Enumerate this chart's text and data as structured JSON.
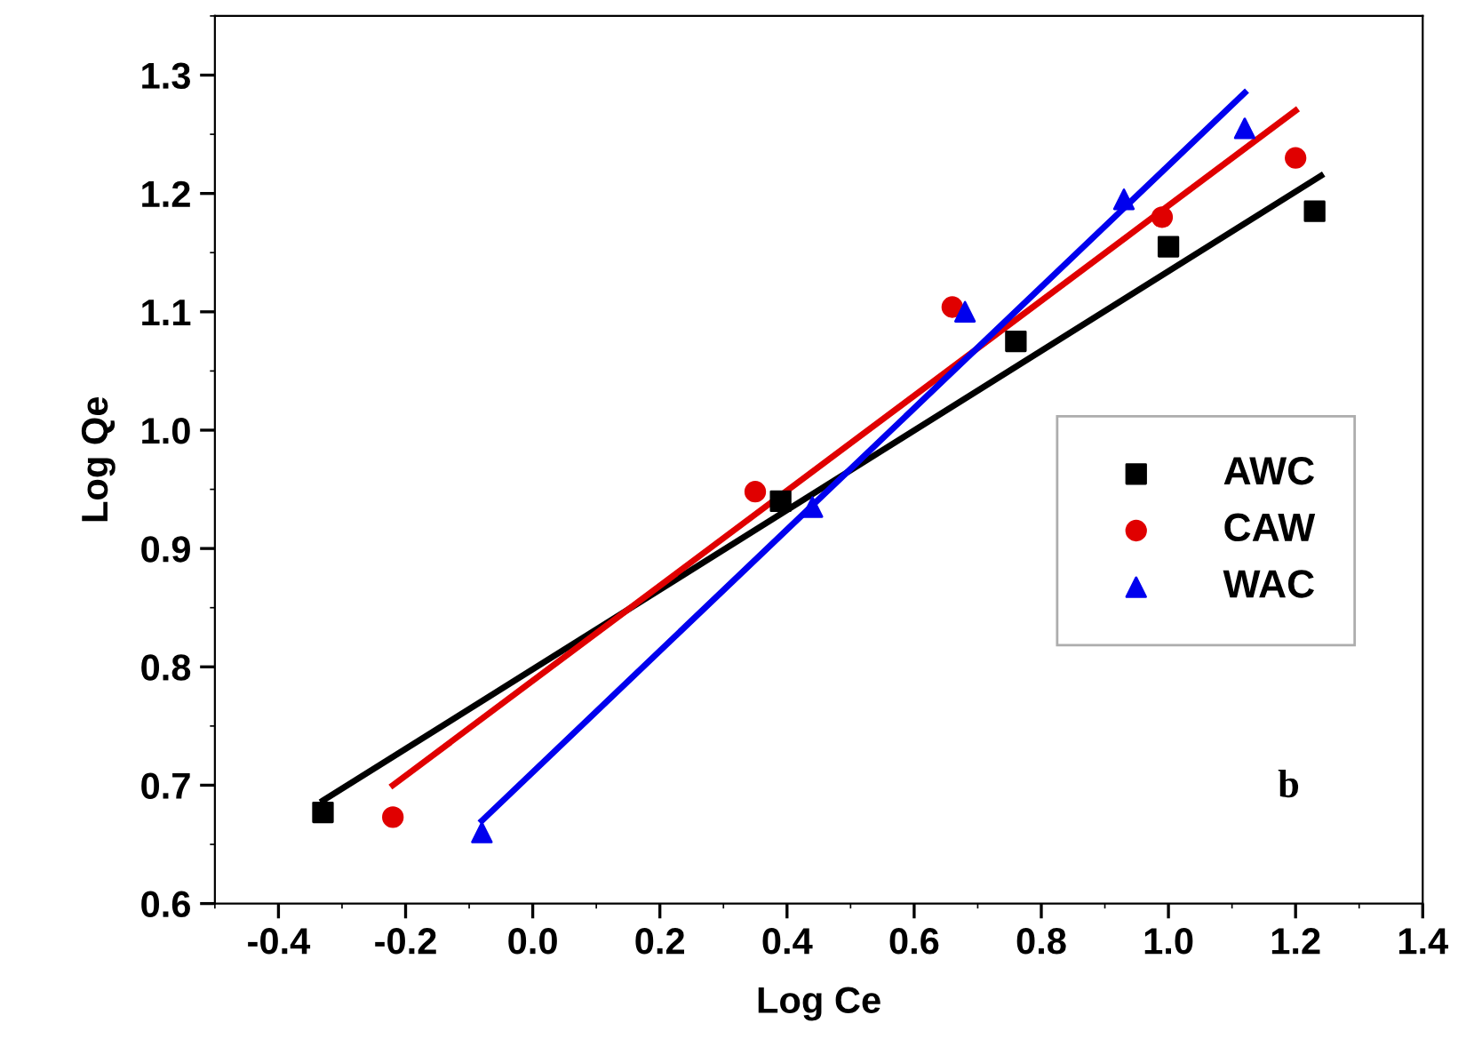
{
  "chart_data": {
    "type": "scatter",
    "xlabel": "Log Ce",
    "ylabel": "Log Qe",
    "xlim": [
      -0.5,
      1.4
    ],
    "ylim": [
      0.6,
      1.35
    ],
    "xticks": [
      -0.4,
      -0.2,
      {
        "value": 0,
        "label": "0.0"
      },
      0.2,
      0.4,
      0.6,
      0.8,
      {
        "value": 1,
        "label": "1.0"
      },
      1.2,
      1.4
    ],
    "yticks": [
      0.6,
      0.7,
      0.8,
      0.9,
      {
        "value": 1,
        "label": "1.0"
      },
      1.1,
      1.2,
      1.3
    ],
    "grid": false,
    "legend": "right",
    "annotations": [
      "b"
    ],
    "series": [
      {
        "name": "AWC",
        "color": "#000000",
        "marker": "square",
        "x": [
          -0.33,
          0.39,
          0.76,
          1.0,
          1.23
        ],
        "values": [
          0.677,
          0.94,
          1.075,
          1.155,
          1.185
        ]
      },
      {
        "name": "CAW",
        "color": "#e00000",
        "marker": "circle",
        "x": [
          -0.22,
          0.35,
          0.66,
          0.99,
          1.2
        ],
        "values": [
          0.673,
          0.948,
          1.104,
          1.18,
          1.23
        ]
      },
      {
        "name": "WAC",
        "color": "#0000ee",
        "marker": "triangle",
        "x": [
          -0.08,
          0.44,
          0.68,
          0.93,
          1.12
        ],
        "values": [
          0.66,
          0.935,
          1.1,
          1.195,
          1.255
        ]
      },
      {
        "type": "line",
        "color": "#000000",
        "marker": "none",
        "x": [
          -0.33,
          1.24
        ],
        "values": [
          0.687,
          1.215
        ]
      },
      {
        "type": "line",
        "color": "#e00000",
        "marker": "none",
        "x": [
          -0.22,
          1.2
        ],
        "values": [
          0.7,
          1.27
        ]
      },
      {
        "type": "line",
        "color": "#0000ee",
        "marker": "none",
        "x": [
          -0.08,
          1.12
        ],
        "values": [
          0.67,
          1.285
        ]
      }
    ]
  }
}
